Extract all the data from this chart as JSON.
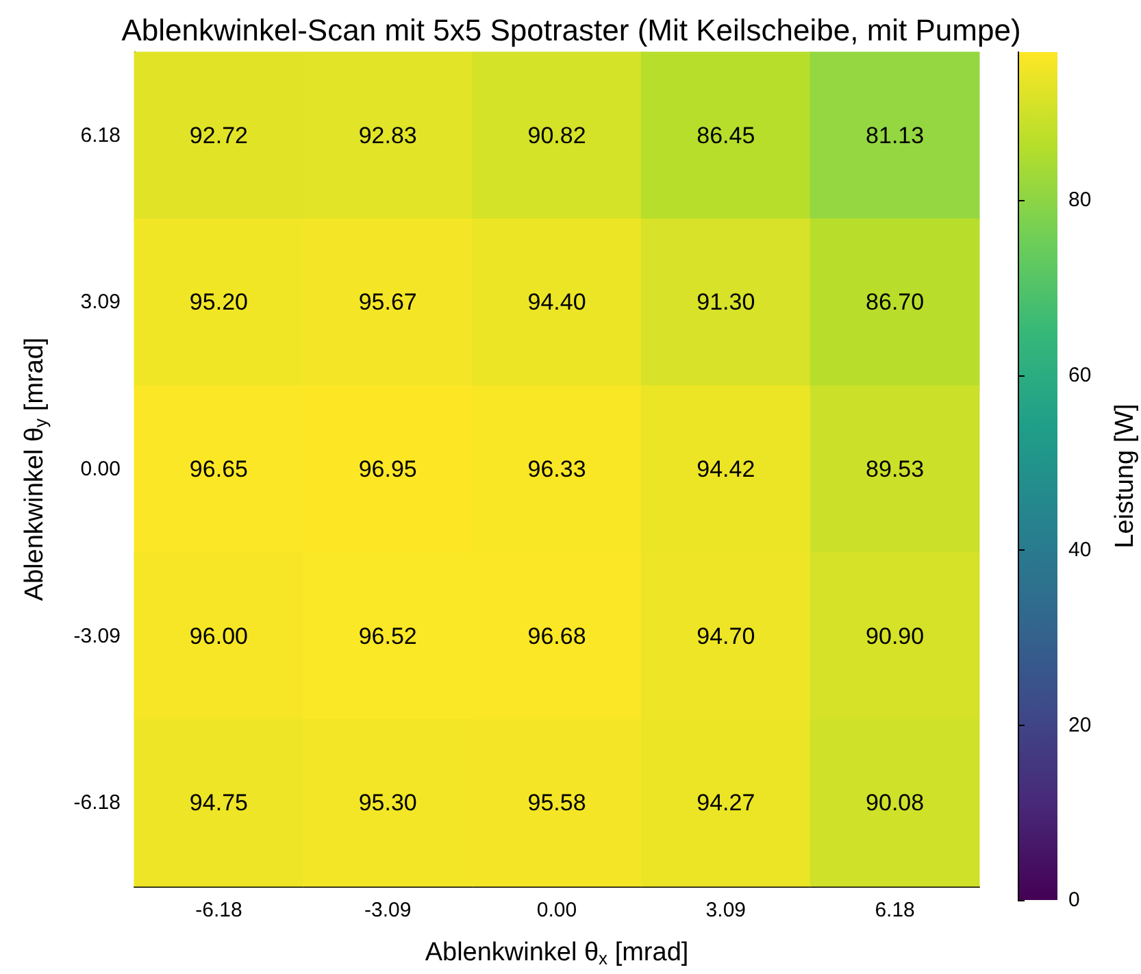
{
  "chart_data": {
    "type": "heatmap",
    "title": "Ablenkwinkel-Scan mit 5x5 Spotraster (Mit Keilscheibe, mit Pumpe)",
    "xlabel": "Ablenkwinkel θ$_{x}$ [mrad]",
    "ylabel": "Ablenkwinkel θ$_{y}$ [mrad]",
    "clabel": "Leistung [W]",
    "categories": [
      "-6.18",
      "-3.09",
      "0.00",
      "3.09",
      "6.18"
    ],
    "y_categories": [
      "6.18",
      "3.09",
      "0.00",
      "-3.09",
      "-6.18"
    ],
    "cells": [
      [
        92.72,
        92.83,
        90.82,
        86.45,
        81.13
      ],
      [
        95.2,
        95.67,
        94.4,
        91.3,
        86.7
      ],
      [
        96.65,
        96.95,
        96.33,
        94.42,
        89.53
      ],
      [
        96.0,
        96.52,
        96.68,
        94.7,
        90.9
      ],
      [
        94.75,
        95.3,
        95.58,
        94.27,
        90.08
      ]
    ],
    "cell_labels": [
      [
        "92.72",
        "92.83",
        "90.82",
        "86.45",
        "81.13"
      ],
      [
        "95.20",
        "95.67",
        "94.40",
        "91.30",
        "86.70"
      ],
      [
        "96.65",
        "96.95",
        "96.33",
        "94.42",
        "89.53"
      ],
      [
        "96.00",
        "96.52",
        "96.68",
        "94.70",
        "90.90"
      ],
      [
        "94.75",
        "95.30",
        "95.58",
        "94.27",
        "90.08"
      ]
    ],
    "clim": [
      0,
      96.95
    ],
    "cticks": [
      0,
      20,
      40,
      60,
      80
    ]
  }
}
